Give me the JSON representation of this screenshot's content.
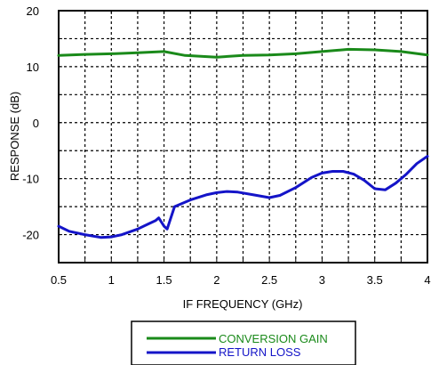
{
  "chart_data": {
    "type": "line",
    "xlabel": "IF FREQUENCY (GHz)",
    "ylabel": "RESPONSE (dB)",
    "xlim": [
      0.5,
      4
    ],
    "ylim": [
      -25,
      20
    ],
    "x_ticks": [
      "0.5",
      "1",
      "1.5",
      "2",
      "2.5",
      "3",
      "3.5",
      "4"
    ],
    "y_ticks": [
      "20",
      "10",
      "0",
      "-10",
      "-20"
    ],
    "grid": true,
    "legend_position": "bottom-center",
    "series": [
      {
        "name": "CONVERSION GAIN",
        "color": "#1a8a1a",
        "points": [
          [
            0.5,
            12.0
          ],
          [
            0.75,
            12.2
          ],
          [
            1.0,
            12.3
          ],
          [
            1.25,
            12.5
          ],
          [
            1.5,
            12.7
          ],
          [
            1.7,
            12.0
          ],
          [
            2.0,
            11.7
          ],
          [
            2.25,
            12.0
          ],
          [
            2.5,
            12.1
          ],
          [
            2.75,
            12.3
          ],
          [
            3.0,
            12.7
          ],
          [
            3.25,
            13.1
          ],
          [
            3.5,
            13.0
          ],
          [
            3.75,
            12.7
          ],
          [
            4.0,
            12.1
          ]
        ]
      },
      {
        "name": "RETURN LOSS",
        "color": "#1414c8",
        "points": [
          [
            0.5,
            -18.5
          ],
          [
            0.6,
            -19.4
          ],
          [
            0.75,
            -20.0
          ],
          [
            0.9,
            -20.5
          ],
          [
            1.0,
            -20.4
          ],
          [
            1.1,
            -20.0
          ],
          [
            1.25,
            -19.0
          ],
          [
            1.35,
            -18.1
          ],
          [
            1.42,
            -17.5
          ],
          [
            1.45,
            -17.0
          ],
          [
            1.5,
            -18.5
          ],
          [
            1.53,
            -19.0
          ],
          [
            1.6,
            -15.0
          ],
          [
            1.75,
            -13.8
          ],
          [
            1.9,
            -12.9
          ],
          [
            2.0,
            -12.5
          ],
          [
            2.1,
            -12.3
          ],
          [
            2.2,
            -12.4
          ],
          [
            2.35,
            -12.9
          ],
          [
            2.5,
            -13.4
          ],
          [
            2.6,
            -13.0
          ],
          [
            2.75,
            -11.6
          ],
          [
            2.9,
            -9.8
          ],
          [
            3.0,
            -9.0
          ],
          [
            3.1,
            -8.7
          ],
          [
            3.2,
            -8.7
          ],
          [
            3.3,
            -9.2
          ],
          [
            3.4,
            -10.3
          ],
          [
            3.5,
            -11.8
          ],
          [
            3.6,
            -12.0
          ],
          [
            3.7,
            -10.8
          ],
          [
            3.8,
            -9.2
          ],
          [
            3.9,
            -7.3
          ],
          [
            4.0,
            -6.0
          ]
        ]
      }
    ]
  }
}
